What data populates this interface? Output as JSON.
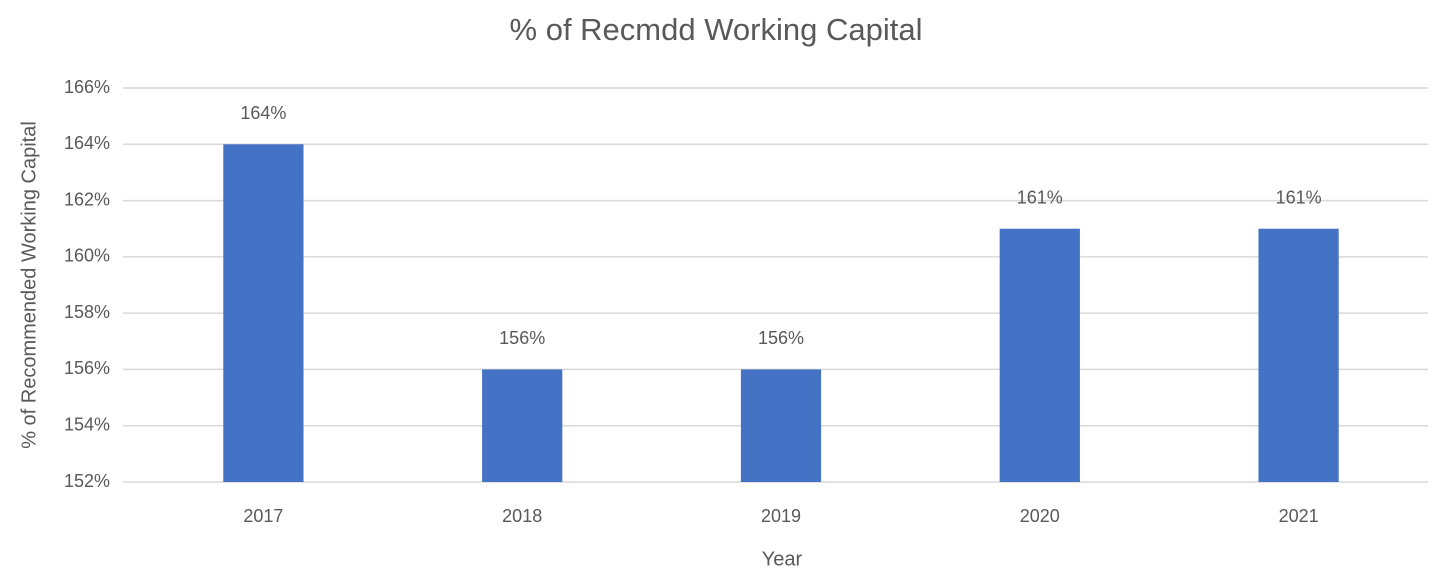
{
  "chart_data": {
    "type": "bar",
    "title": "% of Recmdd Working Capital",
    "x_label": "Year",
    "y_label": "% of Recommended Working Capital",
    "categories": [
      "2017",
      "2018",
      "2019",
      "2020",
      "2021"
    ],
    "values": [
      164,
      156,
      156,
      161,
      161
    ],
    "value_labels": [
      "164%",
      "156%",
      "156%",
      "161%",
      "161%"
    ],
    "color": "#4472c4",
    "ylim": [
      152,
      166
    ],
    "yticks": [
      {
        "value": 152,
        "label": "152%"
      },
      {
        "value": 154,
        "label": "154%"
      },
      {
        "value": 156,
        "label": "156%"
      },
      {
        "value": 158,
        "label": "158%"
      },
      {
        "value": 160,
        "label": "160%"
      },
      {
        "value": 162,
        "label": "162%"
      },
      {
        "value": 164,
        "label": "164%"
      },
      {
        "value": 166,
        "label": "166%"
      }
    ],
    "grid": true
  }
}
